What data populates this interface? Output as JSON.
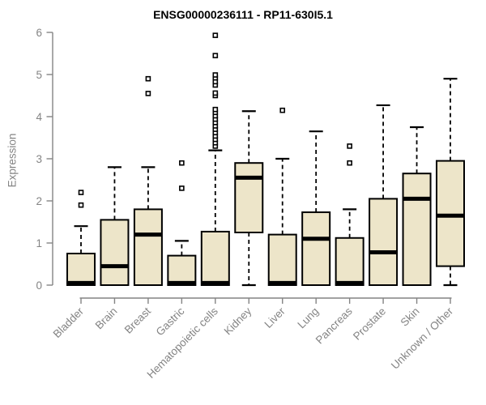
{
  "chart_data": {
    "type": "boxplot",
    "title": "ENSG00000236111 - RP11-630I5.1",
    "ylabel": "Expression",
    "xlabel": "",
    "ylim": [
      0,
      6
    ],
    "yticks": [
      0,
      1,
      2,
      3,
      4,
      5,
      6
    ],
    "grid": false,
    "legend": "none",
    "categories": [
      "Bladder",
      "Brain",
      "Breast",
      "Gastric",
      "Hematopoietic cells",
      "Kidney",
      "Liver",
      "Lung",
      "Pancreas",
      "Prostate",
      "Skin",
      "Unknown / Other"
    ],
    "series": [
      {
        "category": "Bladder",
        "q1": 0,
        "median": 0.05,
        "q3": 0.75,
        "whisker_low": 0,
        "whisker_high": 1.4,
        "outliers": [
          1.9,
          2.2
        ]
      },
      {
        "category": "Brain",
        "q1": 0,
        "median": 0.45,
        "q3": 1.55,
        "whisker_low": 0,
        "whisker_high": 2.8,
        "outliers": []
      },
      {
        "category": "Breast",
        "q1": 0,
        "median": 1.2,
        "q3": 1.8,
        "whisker_low": 0,
        "whisker_high": 2.8,
        "outliers": [
          4.55,
          4.9
        ]
      },
      {
        "category": "Gastric",
        "q1": 0,
        "median": 0.05,
        "q3": 0.7,
        "whisker_low": 0,
        "whisker_high": 1.05,
        "outliers": [
          2.3,
          2.9
        ]
      },
      {
        "category": "Hematopoietic cells",
        "q1": 0,
        "median": 0.05,
        "q3": 1.27,
        "whisker_low": 0,
        "whisker_high": 3.2,
        "outliers": [
          3.3,
          3.38,
          3.46,
          3.54,
          3.62,
          3.7,
          3.78,
          3.86,
          3.94,
          4.02,
          4.1,
          4.17,
          4.5,
          4.56,
          4.75,
          4.83,
          4.92,
          4.99,
          5.45,
          5.93
        ]
      },
      {
        "category": "Kidney",
        "q1": 1.25,
        "median": 2.55,
        "q3": 2.9,
        "whisker_low": 0,
        "whisker_high": 4.13,
        "outliers": []
      },
      {
        "category": "Liver",
        "q1": 0,
        "median": 0.05,
        "q3": 1.2,
        "whisker_low": 0,
        "whisker_high": 3.0,
        "outliers": [
          4.15
        ]
      },
      {
        "category": "Lung",
        "q1": 0,
        "median": 1.1,
        "q3": 1.73,
        "whisker_low": 0,
        "whisker_high": 3.65,
        "outliers": []
      },
      {
        "category": "Pancreas",
        "q1": 0,
        "median": 0.05,
        "q3": 1.12,
        "whisker_low": 0,
        "whisker_high": 1.8,
        "outliers": [
          2.9,
          3.3
        ]
      },
      {
        "category": "Prostate",
        "q1": 0,
        "median": 0.78,
        "q3": 2.05,
        "whisker_low": 0,
        "whisker_high": 4.27,
        "outliers": []
      },
      {
        "category": "Skin",
        "q1": 0,
        "median": 2.05,
        "q3": 2.65,
        "whisker_low": 0,
        "whisker_high": 3.75,
        "outliers": []
      },
      {
        "category": "Unknown / Other",
        "q1": 0.45,
        "median": 1.65,
        "q3": 2.95,
        "whisker_low": 0,
        "whisker_high": 4.9,
        "outliers": []
      }
    ],
    "colors": {
      "box_fill": "#EDE5C9",
      "box_border": "#000000",
      "median": "#000000",
      "whisker": "#000000",
      "outlier_stroke": "#000000",
      "outlier_fill": "#FFFFFF",
      "axis": "#848484",
      "tick_label": "#848484",
      "title": "#000000",
      "background": "#FFFFFF"
    }
  }
}
